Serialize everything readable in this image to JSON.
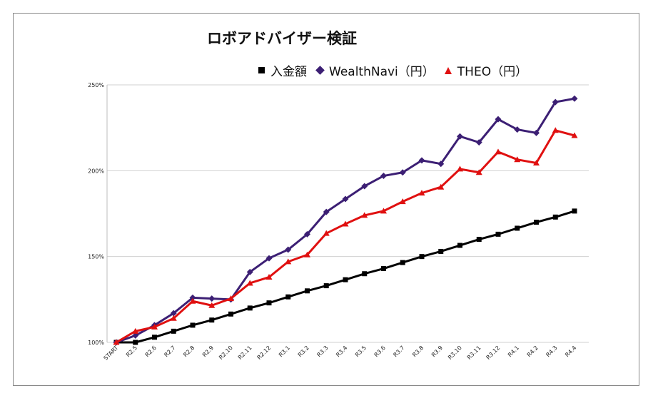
{
  "chart_data": {
    "type": "line",
    "title": "ロボアドバイザー検証",
    "xlabel": "",
    "ylabel": "",
    "ylim": [
      100,
      250
    ],
    "y_ticks": [
      100,
      150,
      200,
      250
    ],
    "y_tick_suffix": "%",
    "grid": true,
    "legend_position": "top",
    "categories": [
      "START",
      "R2.5",
      "R2.6",
      "R2.7",
      "R2.8",
      "R2.9",
      "R2.10",
      "R2.11",
      "R2.12",
      "R3.1",
      "R3.2",
      "R3.3",
      "R3.4",
      "R3.5",
      "R3.6",
      "R3.7",
      "R3.8",
      "R3.9",
      "R3.10",
      "R3.11",
      "R3.12",
      "R4.1",
      "R4.2",
      "R4.3",
      "R4.4"
    ],
    "series": [
      {
        "name": "入金額",
        "color": "#000000",
        "marker": "square",
        "values": [
          100,
          100,
          103,
          106.5,
          110,
          113,
          116.5,
          120,
          123,
          126.5,
          130,
          133,
          136.5,
          140,
          143,
          146.5,
          150,
          153,
          156.5,
          160,
          163,
          166.5,
          170,
          173,
          176.5
        ]
      },
      {
        "name": "WealthNavi（円）",
        "color": "#3c1f74",
        "marker": "diamond",
        "values": [
          100,
          104,
          110,
          117,
          126,
          125.5,
          125,
          141,
          149,
          154,
          163,
          176,
          183.5,
          191,
          197,
          199,
          206,
          204,
          220,
          216.5,
          230,
          224,
          222,
          240,
          242
        ]
      },
      {
        "name": "THEO（円）",
        "color": "#e01010",
        "marker": "triangle",
        "values": [
          100,
          106.5,
          109,
          114,
          124,
          121.5,
          125.5,
          134.5,
          138,
          147,
          151,
          163.5,
          169,
          174,
          176.5,
          182,
          187,
          190.5,
          201,
          199,
          211,
          206.5,
          204.5,
          223.5,
          220.5
        ]
      }
    ]
  }
}
